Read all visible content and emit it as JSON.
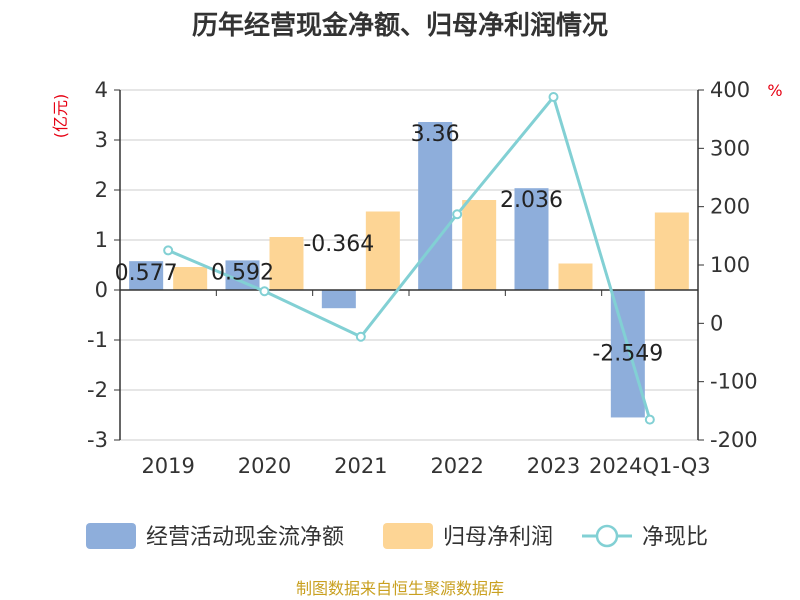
{
  "chart_data": {
    "type": "bar",
    "title": "历年经营现金净额、归母净利润情况",
    "categories": [
      "2019",
      "2020",
      "2021",
      "2022",
      "2023",
      "2024Q1-Q3"
    ],
    "series": [
      {
        "name": "经营活动现金流净额",
        "type": "bar",
        "axis": "left",
        "color": "#8eaedb",
        "values": [
          0.577,
          0.592,
          -0.364,
          3.36,
          2.036,
          -2.549
        ],
        "data_labels": [
          "0.577",
          "0.592",
          "-0.364",
          "3.36",
          "2.036",
          "-2.549"
        ]
      },
      {
        "name": "归母净利润",
        "type": "bar",
        "axis": "left",
        "color": "#fdd595",
        "values": [
          0.46,
          1.06,
          1.57,
          1.8,
          0.53,
          1.55
        ]
      },
      {
        "name": "净现比",
        "type": "line",
        "axis": "right",
        "color": "#82d0d4",
        "values": [
          125,
          55,
          -23,
          187,
          388,
          -165
        ]
      }
    ],
    "y_left": {
      "unit": "(亿元)",
      "min": -3,
      "max": 4,
      "ticks": [
        "4",
        "3",
        "2",
        "1",
        "0",
        "-1",
        "-2",
        "-3"
      ]
    },
    "y_right": {
      "unit": "%",
      "min": -200,
      "max": 400,
      "ticks": [
        "400",
        "300",
        "200",
        "100",
        "0",
        "-100",
        "-200"
      ]
    },
    "grid": true,
    "legend_position": "bottom"
  },
  "footer": "制图数据来自恒生聚源数据库"
}
